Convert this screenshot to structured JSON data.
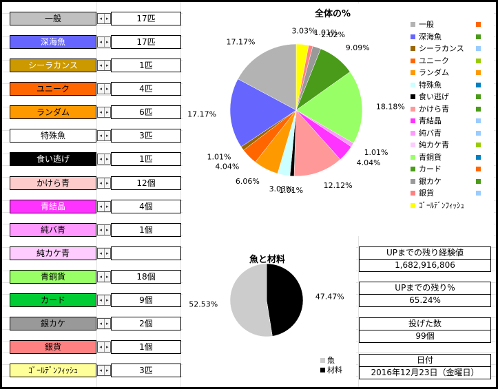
{
  "items": [
    {
      "label": "一般",
      "value": "17匹",
      "color": "#c0c0c0",
      "text": "#000000"
    },
    {
      "label": "深海魚",
      "value": "17匹",
      "color": "#6666ff",
      "text": "#ffffff"
    },
    {
      "label": "シーラカンス",
      "value": "1匹",
      "color": "#cc9900",
      "text": "#ffffff"
    },
    {
      "label": "ユニーク",
      "value": "4匹",
      "color": "#ff6600",
      "text": "#000000"
    },
    {
      "label": "ランダム",
      "value": "6匹",
      "color": "#ff9900",
      "text": "#000000"
    },
    {
      "label": "特殊魚",
      "value": "3匹",
      "color": "#ffffff",
      "text": "#000000"
    },
    {
      "label": "食い逃げ",
      "value": "1匹",
      "color": "#000000",
      "text": "#ffffff"
    },
    {
      "label": "かけら青",
      "value": "12個",
      "color": "#ffcccc",
      "text": "#000000"
    },
    {
      "label": "青結晶",
      "value": "4個",
      "color": "#ff33ff",
      "text": "#ffffff"
    },
    {
      "label": "純バ青",
      "value": "1個",
      "color": "#ff99ff",
      "text": "#000000"
    },
    {
      "label": "純カケ青",
      "value": "",
      "color": "#ffccff",
      "text": "#000000"
    },
    {
      "label": "青銅貨",
      "value": "18個",
      "color": "#99ff66",
      "text": "#000000"
    },
    {
      "label": "カード",
      "value": "9個",
      "color": "#00cc33",
      "text": "#000000"
    },
    {
      "label": "銀カケ",
      "value": "2個",
      "color": "#999999",
      "text": "#000000"
    },
    {
      "label": "銀貨",
      "value": "1個",
      "color": "#ff8080",
      "text": "#000000"
    },
    {
      "label": "ｺﾞｰﾙﾃﾞﾝﾌｨｯｼｭ",
      "value": "3匹",
      "color": "#ffff99",
      "text": "#000000"
    }
  ],
  "spin_icons": {
    "left": "◂",
    "right": "▸"
  },
  "chart1": {
    "title": "全体の%",
    "chart_data": {
      "type": "pie",
      "title": "全体の%",
      "slices": [
        {
          "name": "ｺﾞｰﾙﾃﾞﾝﾌｨｯｼｭ",
          "value": 3,
          "pct": "3.03%",
          "color": "#ffff00"
        },
        {
          "name": "銀貨",
          "value": 1,
          "pct": "1.01%",
          "color": "#ff8080"
        },
        {
          "name": "銀カケ",
          "value": 2,
          "pct": "2.02%",
          "color": "#999999"
        },
        {
          "name": "カード",
          "value": 9,
          "pct": "9.09%",
          "color": "#4a9b19"
        },
        {
          "name": "青銅貨",
          "value": 18,
          "pct": "18.18%",
          "color": "#99ff66"
        },
        {
          "name": "純カケ青",
          "value": 0,
          "pct": "",
          "color": "#ffccff"
        },
        {
          "name": "純バ青",
          "value": 1,
          "pct": "1.01%",
          "color": "#ff99ff"
        },
        {
          "name": "青結晶",
          "value": 4,
          "pct": "4.04%",
          "color": "#ff33ff"
        },
        {
          "name": "かけら青",
          "value": 12,
          "pct": "12.12%",
          "color": "#ff9999"
        },
        {
          "name": "食い逃げ",
          "value": 1,
          "pct": "1.01%",
          "color": "#000000"
        },
        {
          "name": "特殊魚",
          "value": 3,
          "pct": "3.03%",
          "color": "#ccffff"
        },
        {
          "name": "ランダム",
          "value": 6,
          "pct": "6.06%",
          "color": "#ff9900"
        },
        {
          "name": "ユニーク",
          "value": 4,
          "pct": "4.04%",
          "color": "#ff6600"
        },
        {
          "name": "シーラカンス",
          "value": 1,
          "pct": "1.01%",
          "color": "#996600"
        },
        {
          "name": "深海魚",
          "value": 17,
          "pct": "17.17%",
          "color": "#6666ff"
        },
        {
          "name": "一般",
          "value": 17,
          "pct": "17.17%",
          "color": "#b3b3b3"
        }
      ]
    },
    "legend": [
      {
        "name": "一般",
        "color": "#b3b3b3",
        "mark": "#ff6600"
      },
      {
        "name": "深海魚",
        "color": "#6666ff",
        "mark": "#4a9b19"
      },
      {
        "name": "シーラカンス",
        "color": "#996600",
        "mark": "#99ccff"
      },
      {
        "name": "ユニーク",
        "color": "#ff6600",
        "mark": "#99cc00"
      },
      {
        "name": "ランダム",
        "color": "#ff9900",
        "mark": "#ff9900"
      },
      {
        "name": "特殊魚",
        "color": "#ccffff",
        "mark": "#0080c0"
      },
      {
        "name": "食い逃げ",
        "color": "#000000",
        "mark": "#4a9b19"
      },
      {
        "name": "かけら青",
        "color": "#ff9999",
        "mark": "#4a9b19"
      },
      {
        "name": "青結晶",
        "color": "#ff33ff",
        "mark": "#99ccff"
      },
      {
        "name": "純バ青",
        "color": "#ff99ff",
        "mark": "#99ccff"
      },
      {
        "name": "純カケ青",
        "color": "#ffccff",
        "mark": "#99cc00"
      },
      {
        "name": "青銅貨",
        "color": "#99ff66",
        "mark": "#0080c0"
      },
      {
        "name": "カード",
        "color": "#4a9b19",
        "mark": "#ff6600"
      },
      {
        "name": "銀カケ",
        "color": "#999999",
        "mark": "#4a9b19"
      },
      {
        "name": "銀貨",
        "color": "#ff8080",
        "mark": "#99ccff"
      },
      {
        "name": "ｺﾞｰﾙﾃﾞﾝﾌｨｯｼｭ",
        "color": "#ffff00",
        "mark": ""
      }
    ]
  },
  "chart2": {
    "title": "魚と材料",
    "chart_data": {
      "type": "pie",
      "title": "魚と材料",
      "slices": [
        {
          "name": "材料",
          "value": 47.47,
          "pct": "47.47%",
          "color": "#000000"
        },
        {
          "name": "魚",
          "value": 52.53,
          "pct": "52.53%",
          "color": "#cccccc"
        }
      ]
    },
    "legend": [
      {
        "name": "魚",
        "color": "#cccccc"
      },
      {
        "name": "材料",
        "color": "#000000"
      }
    ]
  },
  "stats": {
    "exp_label": "UPまでの残り経験値",
    "exp_value": "1,682,916,806",
    "pct_label": "UPまでの残り%",
    "pct_value": "65.24%",
    "throws_label": "投げた数",
    "throws_value": "99個",
    "date_label": "日付",
    "date_value": "2016年12月23日（金曜日）"
  }
}
